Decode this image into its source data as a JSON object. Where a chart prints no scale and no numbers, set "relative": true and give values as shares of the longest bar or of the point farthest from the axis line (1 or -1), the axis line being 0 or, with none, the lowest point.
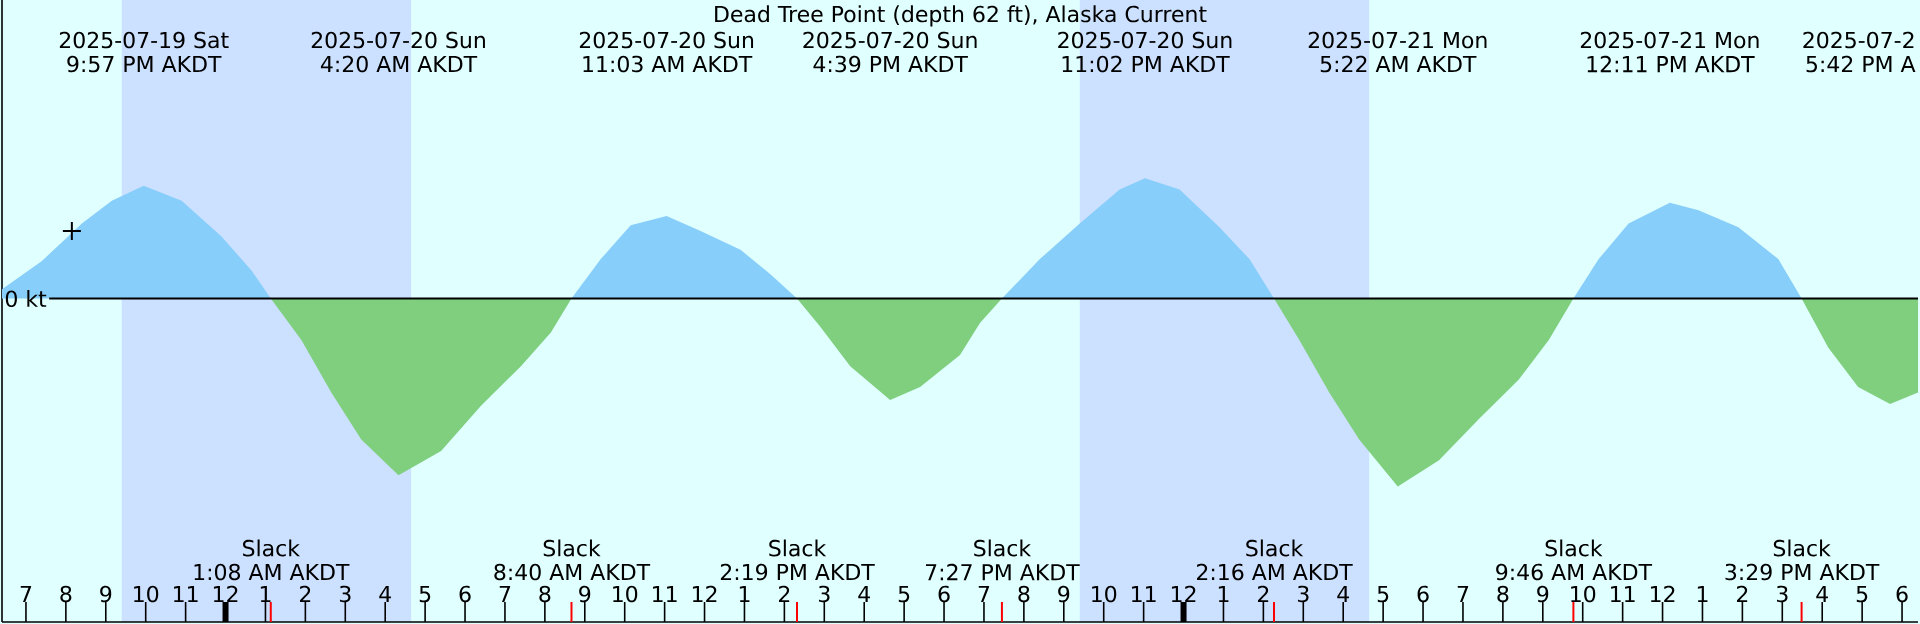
{
  "chart_data": {
    "type": "area",
    "relative": true,
    "title": "Dead Tree Point (depth 62 ft), Alaska Current",
    "x": [
      "2025-07-19T18:24",
      "2025-07-19T19:24",
      "2025-07-19T20:24",
      "2025-07-19T21:09",
      "2025-07-19T21:57",
      "2025-07-19T22:54",
      "2025-07-19T23:54",
      "2025-07-20T00:39",
      "2025-07-20T01:08",
      "2025-07-20T01:54",
      "2025-07-20T02:39",
      "2025-07-20T03:24",
      "2025-07-20T04:20",
      "2025-07-20T05:24",
      "2025-07-20T06:24",
      "2025-07-20T07:24",
      "2025-07-20T08:09",
      "2025-07-20T08:40",
      "2025-07-20T09:24",
      "2025-07-20T10:09",
      "2025-07-20T11:03",
      "2025-07-20T11:54",
      "2025-07-20T12:54",
      "2025-07-20T13:39",
      "2025-07-20T14:19",
      "2025-07-20T14:54",
      "2025-07-20T15:39",
      "2025-07-20T16:39",
      "2025-07-20T17:24",
      "2025-07-20T18:24",
      "2025-07-20T18:54",
      "2025-07-20T19:27",
      "2025-07-20T20:24",
      "2025-07-20T21:24",
      "2025-07-20T22:24",
      "2025-07-20T23:02",
      "2025-07-20T23:54",
      "2025-07-21T00:54",
      "2025-07-21T01:39",
      "2025-07-21T02:16",
      "2025-07-21T02:54",
      "2025-07-21T03:39",
      "2025-07-21T04:24",
      "2025-07-21T05:22",
      "2025-07-21T06:24",
      "2025-07-21T07:24",
      "2025-07-21T08:24",
      "2025-07-21T09:09",
      "2025-07-21T09:46",
      "2025-07-21T10:24",
      "2025-07-21T11:09",
      "2025-07-21T12:11",
      "2025-07-21T12:54",
      "2025-07-21T13:54",
      "2025-07-21T14:54",
      "2025-07-21T15:29",
      "2025-07-21T16:09",
      "2025-07-21T16:54",
      "2025-07-21T17:42",
      "2025-07-21T18:24"
    ],
    "xlim": [
      "2025-07-19T18:24",
      "2025-07-21T18:24"
    ],
    "xticks": [
      {
        "value": "2025-07-19T19:00",
        "label": "7"
      },
      {
        "value": "2025-07-19T20:00",
        "label": "8"
      },
      {
        "value": "2025-07-19T21:00",
        "label": "9"
      },
      {
        "value": "2025-07-19T22:00",
        "label": "10"
      },
      {
        "value": "2025-07-19T23:00",
        "label": "11"
      },
      {
        "value": "2025-07-20T00:00",
        "label": "12"
      },
      {
        "value": "2025-07-20T01:00",
        "label": "1"
      },
      {
        "value": "2025-07-20T02:00",
        "label": "2"
      },
      {
        "value": "2025-07-20T03:00",
        "label": "3"
      },
      {
        "value": "2025-07-20T04:00",
        "label": "4"
      },
      {
        "value": "2025-07-20T05:00",
        "label": "5"
      },
      {
        "value": "2025-07-20T06:00",
        "label": "6"
      },
      {
        "value": "2025-07-20T07:00",
        "label": "7"
      },
      {
        "value": "2025-07-20T08:00",
        "label": "8"
      },
      {
        "value": "2025-07-20T09:00",
        "label": "9"
      },
      {
        "value": "2025-07-20T10:00",
        "label": "10"
      },
      {
        "value": "2025-07-20T11:00",
        "label": "11"
      },
      {
        "value": "2025-07-20T12:00",
        "label": "12"
      },
      {
        "value": "2025-07-20T13:00",
        "label": "1"
      },
      {
        "value": "2025-07-20T14:00",
        "label": "2"
      },
      {
        "value": "2025-07-20T15:00",
        "label": "3"
      },
      {
        "value": "2025-07-20T16:00",
        "label": "4"
      },
      {
        "value": "2025-07-20T17:00",
        "label": "5"
      },
      {
        "value": "2025-07-20T18:00",
        "label": "6"
      },
      {
        "value": "2025-07-20T19:00",
        "label": "7"
      },
      {
        "value": "2025-07-20T20:00",
        "label": "8"
      },
      {
        "value": "2025-07-20T21:00",
        "label": "9"
      },
      {
        "value": "2025-07-20T22:00",
        "label": "10"
      },
      {
        "value": "2025-07-20T23:00",
        "label": "11"
      },
      {
        "value": "2025-07-21T00:00",
        "label": "12"
      },
      {
        "value": "2025-07-21T01:00",
        "label": "1"
      },
      {
        "value": "2025-07-21T02:00",
        "label": "2"
      },
      {
        "value": "2025-07-21T03:00",
        "label": "3"
      },
      {
        "value": "2025-07-21T04:00",
        "label": "4"
      },
      {
        "value": "2025-07-21T05:00",
        "label": "5"
      },
      {
        "value": "2025-07-21T06:00",
        "label": "6"
      },
      {
        "value": "2025-07-21T07:00",
        "label": "7"
      },
      {
        "value": "2025-07-21T08:00",
        "label": "8"
      },
      {
        "value": "2025-07-21T09:00",
        "label": "9"
      },
      {
        "value": "2025-07-21T10:00",
        "label": "10"
      },
      {
        "value": "2025-07-21T11:00",
        "label": "11"
      },
      {
        "value": "2025-07-21T12:00",
        "label": "12"
      },
      {
        "value": "2025-07-21T13:00",
        "label": "1"
      },
      {
        "value": "2025-07-21T14:00",
        "label": "2"
      },
      {
        "value": "2025-07-21T15:00",
        "label": "3"
      },
      {
        "value": "2025-07-21T16:00",
        "label": "4"
      },
      {
        "value": "2025-07-21T17:00",
        "label": "5"
      },
      {
        "value": "2025-07-21T18:00",
        "label": "6"
      }
    ],
    "series": [
      {
        "color": "#87cefa",
        "values": [
          0.05,
          0.2,
          0.4,
          0.52,
          0.6,
          0.52,
          0.33,
          0.15,
          0,
          null,
          null,
          null,
          null,
          null,
          null,
          null,
          null,
          0,
          0.21,
          0.39,
          0.44,
          0.36,
          0.26,
          0.13,
          0,
          null,
          null,
          null,
          null,
          null,
          null,
          0,
          0.21,
          0.4,
          0.58,
          0.64,
          0.58,
          0.38,
          0.21,
          0,
          null,
          null,
          null,
          null,
          null,
          null,
          null,
          null,
          0,
          0.21,
          0.4,
          0.51,
          0.47,
          0.38,
          0.21,
          0,
          null,
          null,
          null,
          null
        ]
      },
      {
        "color": "#7fcf7f",
        "values": [
          null,
          null,
          null,
          null,
          null,
          null,
          null,
          null,
          0,
          -0.22,
          -0.5,
          -0.75,
          -0.94,
          -0.81,
          -0.57,
          -0.36,
          -0.18,
          0,
          null,
          null,
          null,
          null,
          null,
          null,
          0,
          -0.15,
          -0.36,
          -0.54,
          -0.47,
          -0.3,
          -0.13,
          0,
          null,
          null,
          null,
          null,
          null,
          null,
          null,
          0,
          -0.22,
          -0.5,
          -0.75,
          -1,
          -0.86,
          -0.64,
          -0.43,
          -0.22,
          0,
          null,
          null,
          null,
          null,
          null,
          null,
          0,
          -0.26,
          -0.47,
          -0.56,
          -0.5
        ]
      },
      {
        "type": "scatter",
        "color": "#000000",
        "marker": "cross",
        "x": [
          "2025-07-19T20:09"
        ],
        "values": [
          0.36
        ]
      }
    ],
    "bands": [
      {
        "axis": "x",
        "from": "2025-07-19T21:24",
        "to": "2025-07-20T04:39",
        "color": "#cce0ff"
      },
      {
        "axis": "x",
        "from": "2025-07-20T21:24",
        "to": "2025-07-21T04:39",
        "color": "#cce0ff"
      }
    ],
    "ref_lines": [
      {
        "axis": "y",
        "value": 0,
        "label": "0 kt",
        "color": "#000000"
      }
    ],
    "annotations": [
      "2025-07-19 Sat",
      "9:57 PM AKDT",
      "2025-07-20 Sun",
      "4:20 AM AKDT",
      "2025-07-20 Sun",
      "11:03 AM AKDT",
      "2025-07-20 Sun",
      "4:39 PM AKDT",
      "2025-07-20 Sun",
      "11:02 PM AKDT",
      "2025-07-21 Mon",
      "5:22 AM AKDT",
      "2025-07-21 Mon",
      "12:11 PM AKDT",
      "2025-07-2",
      "5:42 PM A",
      "Slack",
      "1:08 AM AKDT",
      "Slack",
      "8:40 AM AKDT",
      "Slack",
      "2:19 PM AKDT",
      "Slack",
      "7:27 PM AKDT",
      "Slack",
      "2:16 AM AKDT",
      "Slack",
      "9:46 AM AKDT",
      "Slack",
      "3:29 PM AKDT"
    ]
  }
}
